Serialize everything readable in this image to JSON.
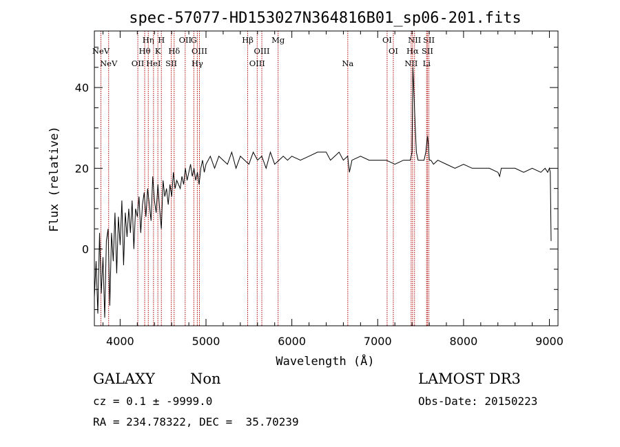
{
  "chart_data": {
    "type": "line",
    "title": "spec-57077-HD153027N364816B01_sp06-201.fits",
    "xlabel": "Wavelength (Å)",
    "ylabel": "Flux (relative)",
    "xlim": [
      3700,
      9100
    ],
    "ylim": [
      -19,
      54
    ],
    "x_ticks": [
      4000,
      5000,
      6000,
      7000,
      8000,
      9000
    ],
    "y_ticks": [
      0,
      20,
      40
    ],
    "series": [
      {
        "name": "spectrum",
        "x": [
          3700,
          3720,
          3740,
          3760,
          3780,
          3800,
          3820,
          3840,
          3860,
          3880,
          3900,
          3920,
          3940,
          3960,
          3980,
          4000,
          4020,
          4040,
          4060,
          4080,
          4100,
          4120,
          4140,
          4160,
          4180,
          4200,
          4220,
          4240,
          4260,
          4280,
          4300,
          4320,
          4340,
          4360,
          4380,
          4400,
          4420,
          4440,
          4460,
          4480,
          4500,
          4520,
          4540,
          4560,
          4580,
          4600,
          4620,
          4640,
          4660,
          4680,
          4700,
          4720,
          4740,
          4760,
          4780,
          4800,
          4820,
          4840,
          4860,
          4880,
          4900,
          4920,
          4940,
          4960,
          4980,
          5000,
          5050,
          5100,
          5150,
          5200,
          5250,
          5300,
          5350,
          5400,
          5450,
          5500,
          5550,
          5600,
          5650,
          5700,
          5750,
          5800,
          5850,
          5900,
          5950,
          6000,
          6100,
          6200,
          6300,
          6400,
          6450,
          6500,
          6550,
          6600,
          6650,
          6670,
          6700,
          6800,
          6900,
          7000,
          7100,
          7200,
          7300,
          7350,
          7380,
          7400,
          7410,
          7420,
          7430,
          7440,
          7450,
          7470,
          7500,
          7540,
          7560,
          7580,
          7590,
          7600,
          7620,
          7650,
          7700,
          7800,
          7900,
          8000,
          8100,
          8200,
          8300,
          8400,
          8420,
          8440,
          8500,
          8600,
          8700,
          8800,
          8900,
          8950,
          8980,
          9000,
          9010,
          9020
        ],
        "y": [
          -12,
          -3,
          -16,
          4,
          -11,
          -2,
          -17,
          2,
          5,
          -14,
          4,
          -3,
          9,
          -6,
          8,
          1,
          12,
          -4,
          9,
          3,
          10,
          4,
          12,
          0,
          10,
          8,
          13,
          4,
          11,
          14,
          8,
          15,
          11,
          7,
          18,
          12,
          9,
          16,
          10,
          5,
          17,
          13,
          15,
          11,
          16,
          13,
          19,
          15,
          17,
          16,
          15,
          18,
          16,
          20,
          17,
          19,
          21,
          18,
          20,
          17,
          19,
          16,
          20,
          22,
          19,
          21,
          23,
          20,
          23,
          22,
          21,
          24,
          20,
          23,
          22,
          21,
          24,
          22,
          23,
          20,
          24,
          21,
          22,
          23,
          22,
          23,
          22,
          23,
          24,
          24,
          22,
          23,
          24,
          22,
          23,
          19,
          22,
          23,
          22,
          22,
          22,
          21,
          22,
          22,
          22,
          24,
          45,
          40,
          34,
          29,
          24,
          22,
          22,
          22,
          24,
          28,
          26,
          22,
          22,
          21,
          22,
          21,
          20,
          21,
          20,
          20,
          20,
          19,
          18,
          20,
          20,
          20,
          19,
          20,
          19,
          20,
          19,
          20,
          19,
          2
        ]
      }
    ],
    "emission_lines": [
      {
        "label": "NeV",
        "x": 3426,
        "row": 3
      },
      {
        "label": "NeV",
        "x": 3346,
        "row": 2
      },
      {
        "label": "OII",
        "x": 3727,
        "row": 3
      },
      {
        "label": "OII",
        "x": 4216,
        "row": 1
      },
      {
        "label": "Hθ",
        "x": 3798,
        "row": 2
      },
      {
        "label": "Hη",
        "x": 3835,
        "row": 1
      },
      {
        "label": "HeI",
        "x": 3889,
        "row": 3
      },
      {
        "label": "H",
        "x": 3970,
        "row": 1
      },
      {
        "label": "K",
        "x": 3934,
        "row": 2
      },
      {
        "label": "Hδ",
        "x": 4102,
        "row": 2
      },
      {
        "label": "SII",
        "x": 4072,
        "row": 3
      },
      {
        "label": "G",
        "x": 4305,
        "row": 1
      },
      {
        "label": "OIII",
        "x": 4363,
        "row": 2
      },
      {
        "label": "Hγ",
        "x": 4341,
        "row": 3
      },
      {
        "label": "Hβ",
        "x": 4861,
        "row": 1
      },
      {
        "label": "OIII",
        "x": 5007,
        "row": 2
      },
      {
        "label": "OIII",
        "x": 4959,
        "row": 3
      },
      {
        "label": "Mg",
        "x": 5175,
        "row": 1
      },
      {
        "label": "Na",
        "x": 5894,
        "row": 3
      },
      {
        "label": "OI",
        "x": 6300,
        "row": 1
      },
      {
        "label": "OI",
        "x": 6364,
        "row": 2
      },
      {
        "label": "NII",
        "x": 6583,
        "row": 1
      },
      {
        "label": "Hα",
        "x": 6563,
        "row": 2
      },
      {
        "label": "NII",
        "x": 6548,
        "row": 3
      },
      {
        "label": "SII",
        "x": 6731,
        "row": 1
      },
      {
        "label": "SII",
        "x": 6716,
        "row": 2
      },
      {
        "label": "Li",
        "x": 6708,
        "row": 3
      }
    ],
    "legend": "none",
    "grid": false
  },
  "info": {
    "class_label": "GALAXY",
    "subclass_label": "Non",
    "survey": "LAMOST DR3",
    "cz_line": "cz = 0.1 ± -9999.0",
    "obs_date": "Obs-Date: 20150223",
    "coords_line": "RA = 234.78322, DEC =  35.70239"
  }
}
